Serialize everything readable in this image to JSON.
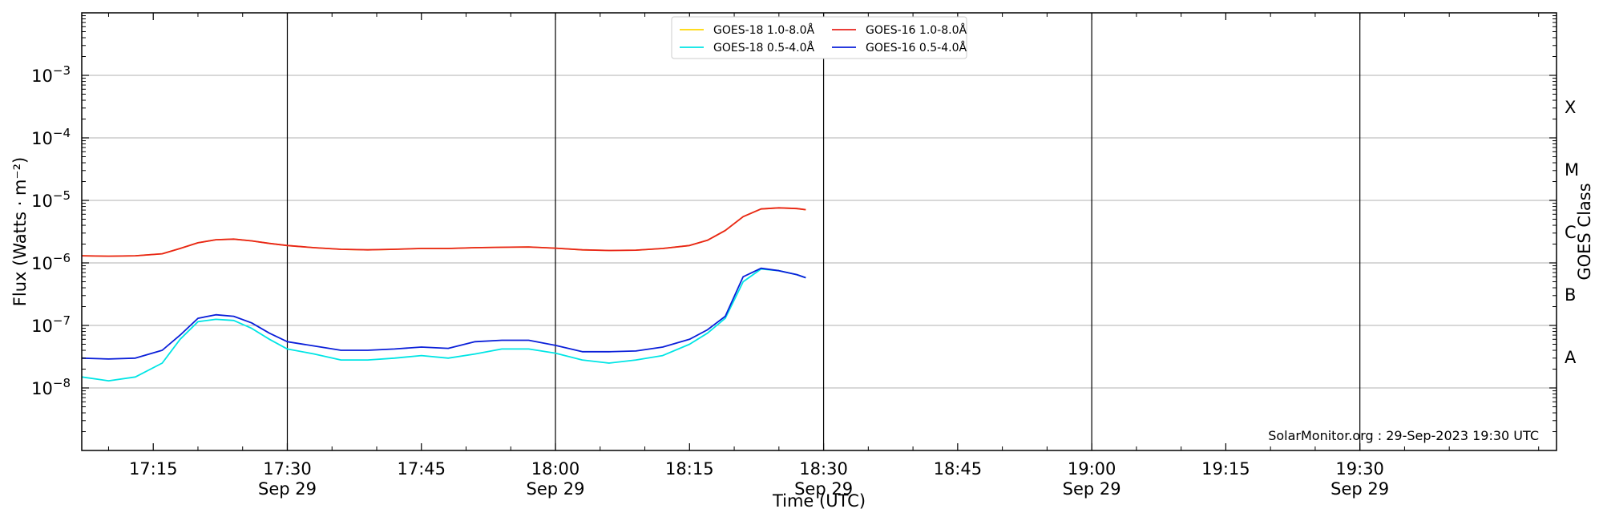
{
  "chart_data": {
    "type": "line",
    "title": "",
    "xlabel": "Time (UTC)",
    "ylabel": "Flux (Watts · m⁻²)",
    "ylabel_right": "GOES Class",
    "y_scale": "log",
    "ylim": [
      1e-09,
      0.01
    ],
    "xlim": [
      "17:07",
      "19:52"
    ],
    "grid": "horizontal",
    "legend_position": "top-center",
    "credit": "SolarMonitor.org : 29-Sep-2023 19:30 UTC",
    "y_ticks": [
      {
        "base": "10",
        "exp": "−8",
        "value": 1e-08
      },
      {
        "base": "10",
        "exp": "−7",
        "value": 1e-07
      },
      {
        "base": "10",
        "exp": "−6",
        "value": 1e-06
      },
      {
        "base": "10",
        "exp": "−5",
        "value": 1e-05
      },
      {
        "base": "10",
        "exp": "−4",
        "value": 0.0001
      },
      {
        "base": "10",
        "exp": "−3",
        "value": 0.001
      }
    ],
    "classes": [
      {
        "label": "A",
        "value": 3.16e-08
      },
      {
        "label": "B",
        "value": 3.16e-07
      },
      {
        "label": "C",
        "value": 3.16e-06
      },
      {
        "label": "M",
        "value": 3.16e-05
      },
      {
        "label": "X",
        "value": 0.000316
      }
    ],
    "x_ticks": [
      {
        "time": "17:15",
        "label": "17:15",
        "date": ""
      },
      {
        "time": "17:30",
        "label": "17:30",
        "date": "Sep 29"
      },
      {
        "time": "17:45",
        "label": "17:45",
        "date": ""
      },
      {
        "time": "18:00",
        "label": "18:00",
        "date": "Sep 29"
      },
      {
        "time": "18:15",
        "label": "18:15",
        "date": ""
      },
      {
        "time": "18:30",
        "label": "18:30",
        "date": "Sep 29"
      },
      {
        "time": "18:45",
        "label": "18:45",
        "date": ""
      },
      {
        "time": "19:00",
        "label": "19:00",
        "date": "Sep 29"
      },
      {
        "time": "19:15",
        "label": "19:15",
        "date": ""
      },
      {
        "time": "19:30",
        "label": "19:30",
        "date": "Sep 29"
      }
    ],
    "vlines": [
      "17:30",
      "18:00",
      "18:30",
      "19:00",
      "19:30"
    ],
    "x": [
      "17:07",
      "17:10",
      "17:13",
      "17:16",
      "17:18",
      "17:20",
      "17:22",
      "17:24",
      "17:26",
      "17:28",
      "17:30",
      "17:33",
      "17:36",
      "17:39",
      "17:42",
      "17:45",
      "17:48",
      "17:51",
      "17:54",
      "17:57",
      "18:00",
      "18:03",
      "18:06",
      "18:09",
      "18:12",
      "18:15",
      "18:17",
      "18:19",
      "18:21",
      "18:23",
      "18:25",
      "18:27",
      "18:28"
    ],
    "series": [
      {
        "name": "GOES-18 1.0-8.0Å",
        "color": "#ffd700",
        "values": [
          1.3e-06,
          1.28e-06,
          1.3e-06,
          1.4e-06,
          1.7e-06,
          2.1e-06,
          2.35e-06,
          2.4e-06,
          2.25e-06,
          2.05e-06,
          1.9e-06,
          1.75e-06,
          1.65e-06,
          1.62e-06,
          1.65e-06,
          1.7e-06,
          1.7e-06,
          1.75e-06,
          1.78e-06,
          1.8e-06,
          1.72e-06,
          1.62e-06,
          1.58e-06,
          1.6e-06,
          1.7e-06,
          1.9e-06,
          2.3e-06,
          3.3e-06,
          5.5e-06,
          7.3e-06,
          7.6e-06,
          7.4e-06,
          7.1e-06
        ]
      },
      {
        "name": "GOES-16 1.0-8.0Å",
        "color": "#e8231c",
        "values": [
          1.3e-06,
          1.28e-06,
          1.3e-06,
          1.4e-06,
          1.7e-06,
          2.1e-06,
          2.35e-06,
          2.4e-06,
          2.25e-06,
          2.05e-06,
          1.9e-06,
          1.75e-06,
          1.65e-06,
          1.62e-06,
          1.65e-06,
          1.7e-06,
          1.7e-06,
          1.75e-06,
          1.78e-06,
          1.8e-06,
          1.72e-06,
          1.62e-06,
          1.58e-06,
          1.6e-06,
          1.7e-06,
          1.9e-06,
          2.3e-06,
          3.3e-06,
          5.5e-06,
          7.3e-06,
          7.6e-06,
          7.4e-06,
          7.1e-06
        ]
      },
      {
        "name": "GOES-18 0.5-4.0Å",
        "color": "#00e5e5",
        "values": [
          1.5e-08,
          1.3e-08,
          1.5e-08,
          2.5e-08,
          6e-08,
          1.15e-07,
          1.25e-07,
          1.2e-07,
          9e-08,
          6e-08,
          4.2e-08,
          3.5e-08,
          2.8e-08,
          2.8e-08,
          3e-08,
          3.3e-08,
          3e-08,
          3.5e-08,
          4.2e-08,
          4.2e-08,
          3.6e-08,
          2.8e-08,
          2.5e-08,
          2.8e-08,
          3.3e-08,
          5e-08,
          7.5e-08,
          1.3e-07,
          5e-07,
          8e-07,
          7.5e-07,
          6.5e-07,
          5.8e-07
        ]
      },
      {
        "name": "GOES-16 0.5-4.0Å",
        "color": "#0a1fd9",
        "values": [
          3e-08,
          2.9e-08,
          3e-08,
          4e-08,
          7e-08,
          1.3e-07,
          1.48e-07,
          1.4e-07,
          1.1e-07,
          7.5e-08,
          5.5e-08,
          4.7e-08,
          4e-08,
          4e-08,
          4.2e-08,
          4.5e-08,
          4.3e-08,
          5.5e-08,
          5.8e-08,
          5.8e-08,
          4.8e-08,
          3.8e-08,
          3.8e-08,
          3.9e-08,
          4.5e-08,
          6e-08,
          8.5e-08,
          1.4e-07,
          6e-07,
          8.2e-07,
          7.5e-07,
          6.5e-07,
          5.8e-07
        ]
      }
    ]
  }
}
